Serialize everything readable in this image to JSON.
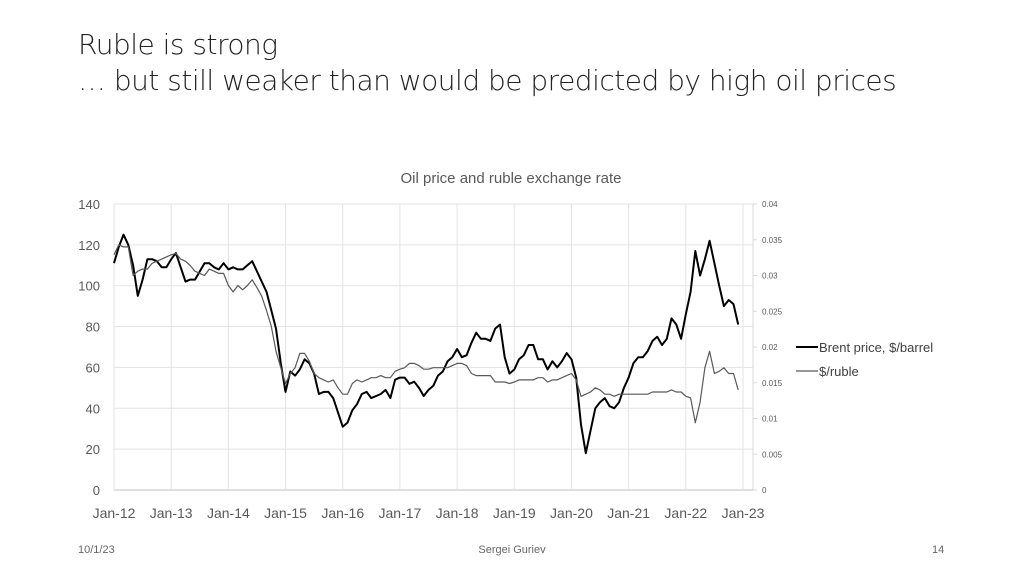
{
  "slide": {
    "title_line1": "Ruble is strong",
    "title_line2": "… but still weaker than would be predicted by high oil prices",
    "footer_date": "10/1/23",
    "footer_author": "Sergei Guriev",
    "page_number": "14"
  },
  "chart_data": {
    "type": "line",
    "title": "Oil price and ruble exchange rate",
    "x_tick_labels": [
      "Jan-12",
      "Jan-13",
      "Jan-14",
      "Jan-15",
      "Jan-16",
      "Jan-17",
      "Jan-18",
      "Jan-19",
      "Jan-20",
      "Jan-21",
      "Jan-22",
      "Jan-23"
    ],
    "x_range": [
      "2012-01",
      "2023-01"
    ],
    "x_frequency": "monthly",
    "y_left": {
      "range": [
        0,
        140
      ],
      "ticks": [
        "0",
        "20",
        "40",
        "60",
        "80",
        "100",
        "120",
        "140"
      ]
    },
    "y_right": {
      "range": [
        0,
        0.04
      ],
      "ticks": [
        "0",
        "0.005",
        "0.01",
        "0.015",
        "0.02",
        "0.025",
        "0.03",
        "0.035",
        "0.04"
      ]
    },
    "grid": true,
    "legend_position": "right",
    "series": [
      {
        "name": "Brent price, $/barrel",
        "axis": "left",
        "color": "#000000",
        "x_start": "2012-01",
        "values": [
          111,
          119,
          125,
          120,
          110,
          95,
          103,
          113,
          113,
          112,
          109,
          109,
          113,
          116,
          109,
          102,
          103,
          103,
          107,
          111,
          111,
          109,
          108,
          111,
          108,
          109,
          108,
          108,
          110,
          112,
          107,
          102,
          97,
          88,
          79,
          62,
          48,
          58,
          56,
          59,
          64,
          62,
          57,
          47,
          48,
          48,
          45,
          38,
          31,
          33,
          39,
          42,
          47,
          48,
          45,
          46,
          47,
          49,
          45,
          54,
          55,
          55,
          52,
          53,
          50,
          46,
          49,
          51,
          56,
          58,
          63,
          65,
          69,
          65,
          66,
          72,
          77,
          74,
          74,
          73,
          79,
          81,
          65,
          57,
          59,
          64,
          66,
          71,
          71,
          64,
          64,
          59,
          63,
          60,
          63,
          67,
          64,
          55,
          32,
          18,
          29,
          40,
          43,
          45,
          41,
          40,
          43,
          50,
          55,
          62,
          65,
          65,
          68,
          73,
          75,
          71,
          74,
          84,
          81,
          74,
          86,
          97,
          117,
          105,
          113,
          122,
          111,
          100,
          90,
          93,
          91,
          81
        ]
      },
      {
        "name": "$/ruble",
        "axis": "right",
        "color": "#595959",
        "x_start": "2012-01",
        "values": [
          0.0329,
          0.0343,
          0.034,
          0.034,
          0.03,
          0.0306,
          0.0309,
          0.0309,
          0.0317,
          0.032,
          0.0323,
          0.0326,
          0.0329,
          0.0331,
          0.0323,
          0.032,
          0.0314,
          0.0306,
          0.0303,
          0.03,
          0.0309,
          0.0306,
          0.0303,
          0.0303,
          0.0286,
          0.0277,
          0.0286,
          0.028,
          0.0286,
          0.0294,
          0.0283,
          0.0271,
          0.0251,
          0.0229,
          0.0194,
          0.0171,
          0.0149,
          0.0163,
          0.0171,
          0.0191,
          0.0191,
          0.018,
          0.0163,
          0.0157,
          0.0154,
          0.0151,
          0.0154,
          0.0143,
          0.0134,
          0.0134,
          0.0149,
          0.0154,
          0.0151,
          0.0154,
          0.0157,
          0.0157,
          0.016,
          0.0157,
          0.0157,
          0.0166,
          0.0169,
          0.0171,
          0.0177,
          0.0177,
          0.0174,
          0.0169,
          0.0169,
          0.0171,
          0.0171,
          0.0171,
          0.0171,
          0.0174,
          0.0177,
          0.0177,
          0.0174,
          0.0163,
          0.016,
          0.016,
          0.016,
          0.016,
          0.0151,
          0.0151,
          0.0151,
          0.0149,
          0.0151,
          0.0154,
          0.0154,
          0.0154,
          0.0154,
          0.0157,
          0.0157,
          0.0151,
          0.0154,
          0.0154,
          0.0157,
          0.016,
          0.0163,
          0.0154,
          0.0131,
          0.0134,
          0.0137,
          0.0143,
          0.014,
          0.0134,
          0.0134,
          0.0131,
          0.0134,
          0.0134,
          0.0134,
          0.0134,
          0.0134,
          0.0134,
          0.0134,
          0.0137,
          0.0137,
          0.0137,
          0.0137,
          0.014,
          0.0137,
          0.0137,
          0.0131,
          0.0129,
          0.0094,
          0.0123,
          0.0171,
          0.0194,
          0.0163,
          0.0166,
          0.0171,
          0.0163,
          0.0163,
          0.014
        ]
      }
    ]
  }
}
